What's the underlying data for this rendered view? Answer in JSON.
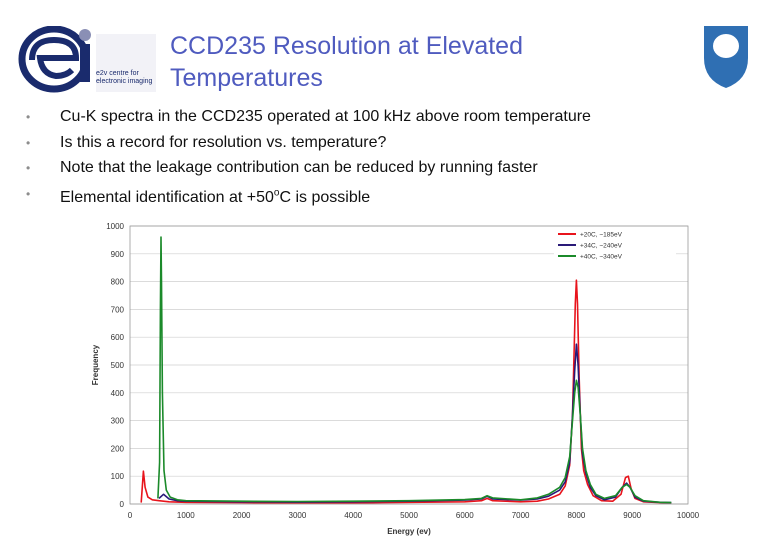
{
  "slide": {
    "title": "CCD235 Resolution at Elevated Temperatures",
    "logo": {
      "letters": "ei",
      "caption": "e2v centre for electronic imaging",
      "colors": {
        "mark": "#1a2b6d",
        "fill": "#8a8fb5"
      }
    },
    "emblem": {
      "name": "open-university-shield",
      "color": "#2f6fb3"
    },
    "bullets": [
      {
        "text": "Cu-K spectra in the CCD235 operated at 100 kHz above room temperature"
      },
      {
        "text": "Is this a record for resolution vs. temperature?"
      },
      {
        "text": "Note that the leakage contribution can be reduced by running faster"
      },
      {
        "text_before": "Elemental identification at +50",
        "superscript": "o",
        "text_after": "C is possible"
      }
    ]
  },
  "chart_data": {
    "type": "line",
    "title": "",
    "xlabel": "Energy (ev)",
    "ylabel": "Frequency",
    "xlim": [
      0,
      10000
    ],
    "ylim": [
      0,
      1000
    ],
    "xticks": [
      0,
      1000,
      2000,
      3000,
      4000,
      5000,
      6000,
      7000,
      8000,
      9000,
      10000
    ],
    "yticks": [
      0,
      100,
      200,
      300,
      400,
      500,
      600,
      700,
      800,
      900,
      1000
    ],
    "grid": "horizontal",
    "legend_position": "top-right",
    "series": [
      {
        "name": "+20C, ~185eV",
        "color": "#e8141c",
        "points": [
          [
            200,
            5
          ],
          [
            240,
            118
          ],
          [
            270,
            60
          ],
          [
            320,
            25
          ],
          [
            400,
            15
          ],
          [
            520,
            12
          ],
          [
            700,
            8
          ],
          [
            1000,
            6
          ],
          [
            2000,
            5
          ],
          [
            3000,
            4
          ],
          [
            4000,
            4
          ],
          [
            5000,
            6
          ],
          [
            6000,
            8
          ],
          [
            6300,
            12
          ],
          [
            6400,
            20
          ],
          [
            6500,
            12
          ],
          [
            7000,
            8
          ],
          [
            7300,
            10
          ],
          [
            7500,
            18
          ],
          [
            7700,
            35
          ],
          [
            7800,
            65
          ],
          [
            7880,
            140
          ],
          [
            7930,
            320
          ],
          [
            7960,
            560
          ],
          [
            7980,
            720
          ],
          [
            8000,
            805
          ],
          [
            8020,
            720
          ],
          [
            8050,
            450
          ],
          [
            8090,
            200
          ],
          [
            8130,
            120
          ],
          [
            8200,
            70
          ],
          [
            8300,
            30
          ],
          [
            8450,
            12
          ],
          [
            8650,
            10
          ],
          [
            8800,
            35
          ],
          [
            8880,
            95
          ],
          [
            8930,
            100
          ],
          [
            8980,
            55
          ],
          [
            9050,
            20
          ],
          [
            9200,
            8
          ],
          [
            9500,
            5
          ],
          [
            9700,
            4
          ]
        ]
      },
      {
        "name": "+34C, ~240eV",
        "color": "#2a1a78",
        "points": [
          [
            520,
            20
          ],
          [
            600,
            35
          ],
          [
            700,
            18
          ],
          [
            850,
            12
          ],
          [
            1000,
            10
          ],
          [
            2000,
            8
          ],
          [
            3000,
            7
          ],
          [
            4000,
            8
          ],
          [
            5000,
            10
          ],
          [
            6000,
            14
          ],
          [
            6300,
            18
          ],
          [
            6400,
            28
          ],
          [
            6500,
            18
          ],
          [
            7000,
            14
          ],
          [
            7300,
            18
          ],
          [
            7500,
            28
          ],
          [
            7700,
            50
          ],
          [
            7800,
            80
          ],
          [
            7880,
            150
          ],
          [
            7930,
            320
          ],
          [
            7970,
            480
          ],
          [
            8000,
            575
          ],
          [
            8030,
            500
          ],
          [
            8070,
            320
          ],
          [
            8110,
            180
          ],
          [
            8170,
            110
          ],
          [
            8250,
            60
          ],
          [
            8350,
            30
          ],
          [
            8500,
            15
          ],
          [
            8700,
            25
          ],
          [
            8820,
            60
          ],
          [
            8900,
            75
          ],
          [
            8960,
            60
          ],
          [
            9050,
            25
          ],
          [
            9200,
            10
          ],
          [
            9500,
            6
          ],
          [
            9700,
            5
          ]
        ]
      },
      {
        "name": "+40C, ~340eV",
        "color": "#1b8a2a",
        "points": [
          [
            500,
            20
          ],
          [
            530,
            150
          ],
          [
            545,
            700
          ],
          [
            555,
            960
          ],
          [
            565,
            800
          ],
          [
            580,
            400
          ],
          [
            610,
            120
          ],
          [
            650,
            50
          ],
          [
            720,
            25
          ],
          [
            850,
            15
          ],
          [
            1000,
            12
          ],
          [
            2000,
            10
          ],
          [
            3000,
            9
          ],
          [
            4000,
            10
          ],
          [
            5000,
            12
          ],
          [
            6000,
            16
          ],
          [
            6300,
            20
          ],
          [
            6400,
            30
          ],
          [
            6500,
            22
          ],
          [
            7000,
            15
          ],
          [
            7300,
            22
          ],
          [
            7500,
            35
          ],
          [
            7700,
            60
          ],
          [
            7800,
            95
          ],
          [
            7880,
            170
          ],
          [
            7930,
            300
          ],
          [
            7970,
            400
          ],
          [
            8000,
            445
          ],
          [
            8030,
            420
          ],
          [
            8070,
            320
          ],
          [
            8110,
            200
          ],
          [
            8170,
            120
          ],
          [
            8250,
            70
          ],
          [
            8350,
            35
          ],
          [
            8500,
            20
          ],
          [
            8700,
            30
          ],
          [
            8820,
            60
          ],
          [
            8900,
            70
          ],
          [
            8960,
            60
          ],
          [
            9050,
            30
          ],
          [
            9200,
            12
          ],
          [
            9500,
            6
          ],
          [
            9700,
            5
          ]
        ]
      }
    ]
  }
}
